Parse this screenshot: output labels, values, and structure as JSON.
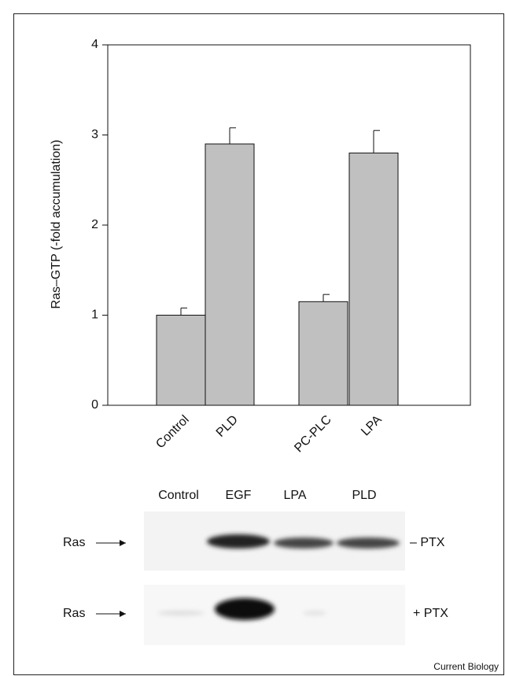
{
  "chart_data": {
    "type": "bar",
    "y_label": "Ras–GTP (-fold accumulation)",
    "categories": [
      "Control",
      "PLD",
      "PC-PLC",
      "LPA"
    ],
    "values": [
      1.0,
      2.9,
      1.15,
      2.8
    ],
    "errors": [
      0.08,
      0.18,
      0.08,
      0.25
    ],
    "color": "#c0c0c0",
    "ylim": [
      0,
      4
    ],
    "yticks": [
      0,
      1,
      2,
      3,
      4
    ]
  },
  "blot": {
    "columns": [
      "Control",
      "EGF",
      "LPA",
      "PLD"
    ],
    "rows": [
      {
        "label": "Ras",
        "condition": "– PTX"
      },
      {
        "label": "Ras",
        "condition": "+ PTX"
      }
    ]
  },
  "footer": "Current Biology"
}
